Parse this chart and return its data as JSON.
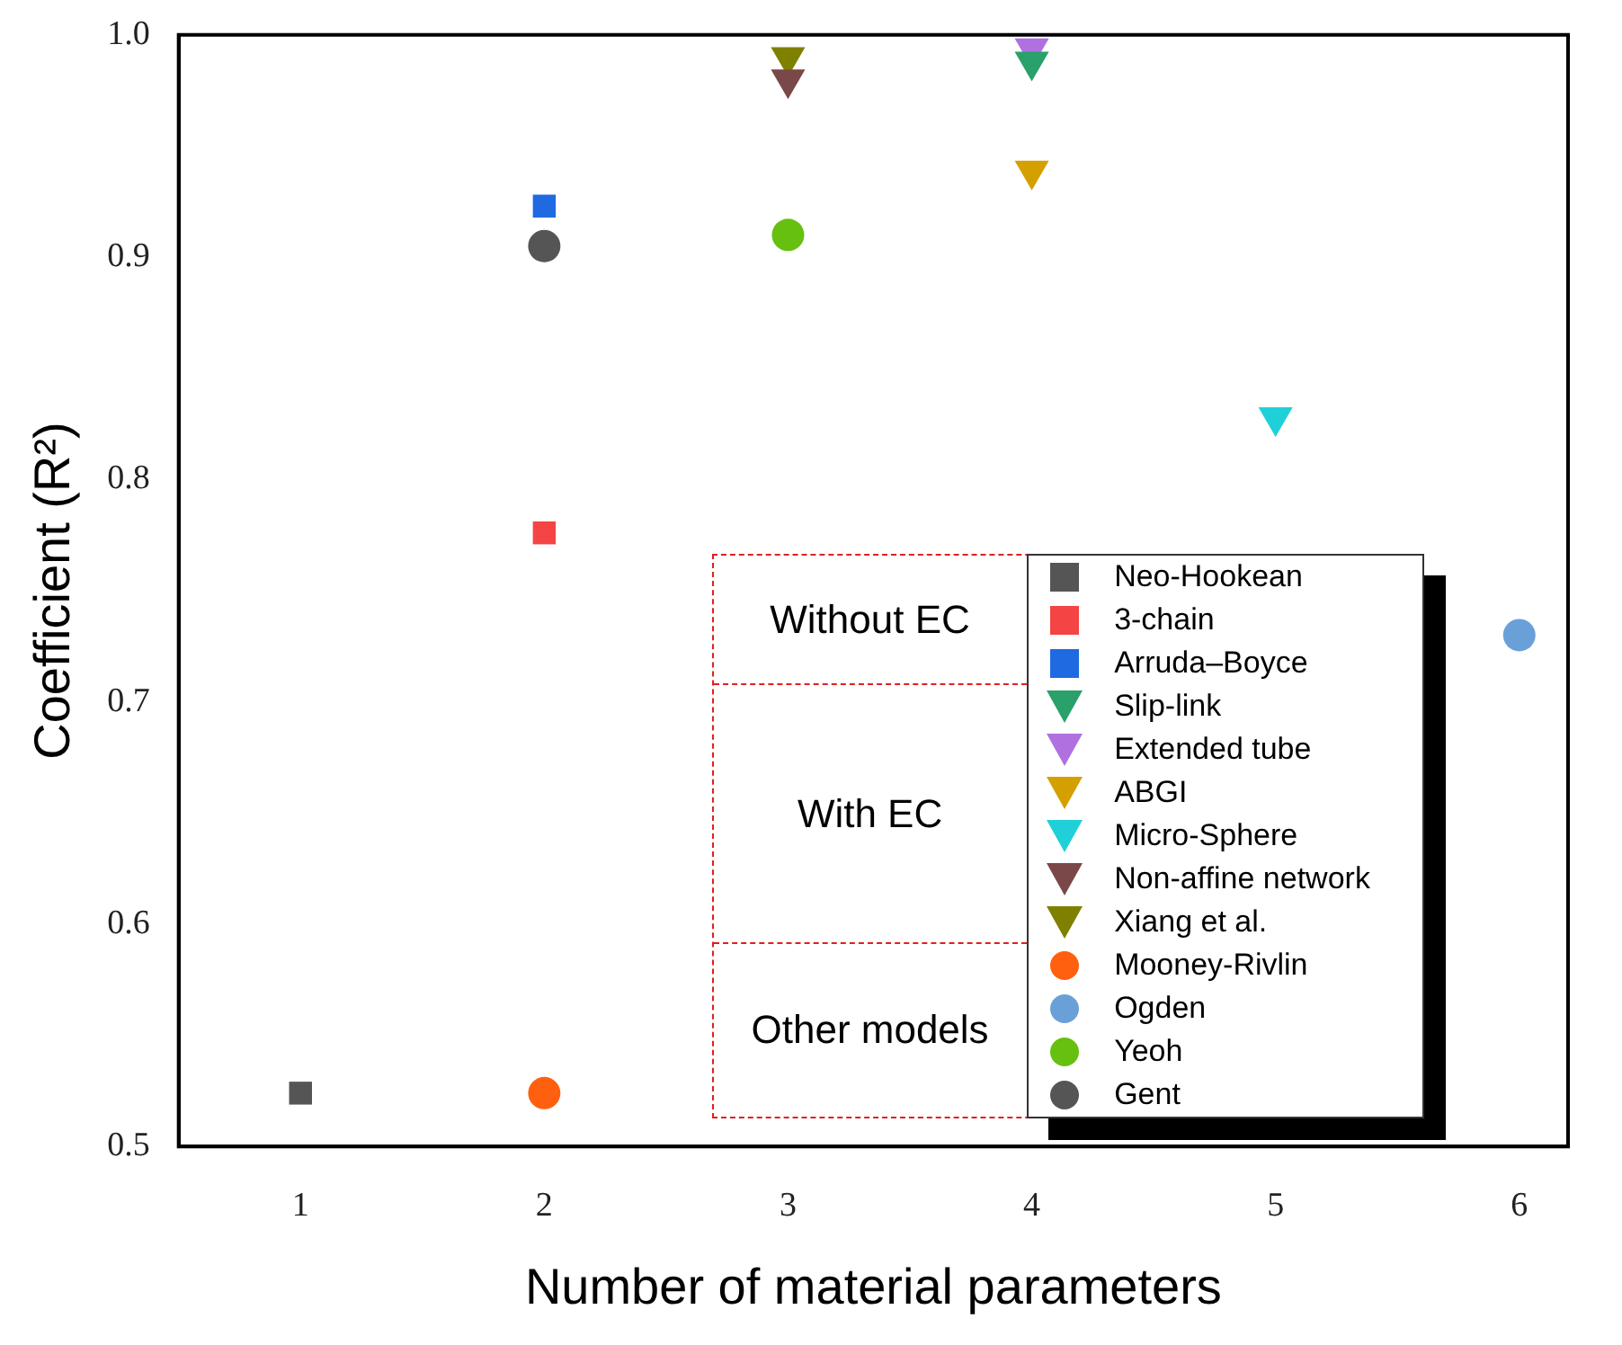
{
  "chart_data": {
    "type": "scatter",
    "xlabel": "Number of material parameters",
    "ylabel": "Coefficient (R²)",
    "xlim": [
      0.5,
      6.2
    ],
    "xticks": [
      1,
      2,
      3,
      4,
      5,
      6
    ],
    "ylim": [
      0.5,
      1.0
    ],
    "yticks": [
      {
        "value": 0.5,
        "label": "0.5"
      },
      {
        "value": 0.6,
        "label": "0.6"
      },
      {
        "value": 0.7,
        "label": "0.7"
      },
      {
        "value": 0.8,
        "label": "0.8"
      },
      {
        "value": 0.9,
        "label": "0.9"
      },
      {
        "value": 1.0,
        "label": "1.0"
      }
    ],
    "grid": false,
    "legend": "bottom right",
    "annotations": [
      "Without EC",
      "With EC",
      "Other models"
    ],
    "series": [
      {
        "name": "Neo-Hookean",
        "color": "#555555",
        "marker": "square",
        "x": [
          1
        ],
        "values": [
          0.524
        ]
      },
      {
        "name": "3-chain",
        "color": "#f44444",
        "marker": "square",
        "x": [
          2
        ],
        "values": [
          0.776
        ]
      },
      {
        "name": "Arruda–Boyce",
        "color": "#1f6ae0",
        "marker": "square",
        "x": [
          2
        ],
        "values": [
          0.923
        ]
      },
      {
        "name": "Slip-link",
        "color": "#2aa06a",
        "marker": "triangle",
        "x": [
          4
        ],
        "values": [
          0.988
        ]
      },
      {
        "name": "Extended tube",
        "color": "#b070e0",
        "marker": "triangle",
        "x": [
          4
        ],
        "values": [
          0.994
        ]
      },
      {
        "name": "ABGI",
        "color": "#d4a000",
        "marker": "triangle",
        "x": [
          4
        ],
        "values": [
          0.939
        ]
      },
      {
        "name": "Micro-Sphere",
        "color": "#20d0d8",
        "marker": "triangle",
        "x": [
          5
        ],
        "values": [
          0.828
        ]
      },
      {
        "name": "Non-affine network",
        "color": "#7a4848",
        "marker": "triangle",
        "x": [
          3
        ],
        "values": [
          0.98
        ]
      },
      {
        "name": "Xiang et al.",
        "color": "#808000",
        "marker": "triangle",
        "x": [
          3
        ],
        "values": [
          0.99
        ]
      },
      {
        "name": "Mooney-Rivlin",
        "color": "#ff6010",
        "marker": "circle",
        "x": [
          2
        ],
        "values": [
          0.524
        ]
      },
      {
        "name": "Ogden",
        "color": "#6aa0d8",
        "marker": "circle",
        "x": [
          6
        ],
        "values": [
          0.73
        ]
      },
      {
        "name": "Yeoh",
        "color": "#66c010",
        "marker": "circle",
        "x": [
          3
        ],
        "values": [
          0.91
        ]
      },
      {
        "name": "Gent",
        "color": "#555555",
        "marker": "circle",
        "x": [
          2
        ],
        "values": [
          0.905
        ]
      }
    ]
  }
}
